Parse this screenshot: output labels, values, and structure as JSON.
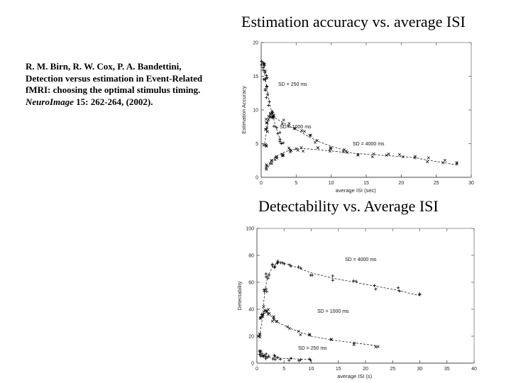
{
  "citation": {
    "authors": "R. M. Birn, R. W. Cox, P. A. Bandettini,",
    "title": "Detection versus estimation in Event-Related fMRI: choosing the optimal stimulus timing.",
    "journal": "NeuroImage",
    "details": "15: 262-264,",
    "year": "(2002)."
  },
  "chart_data": [
    {
      "type": "scatter",
      "title": "Estimation accuracy vs. average ISI",
      "xlabel": "average ISI (sec)",
      "ylabel": "Estimation Accuracy",
      "xlim": [
        0,
        30
      ],
      "ylim": [
        0,
        20
      ],
      "xticks": [
        0,
        5,
        10,
        15,
        20,
        25,
        30
      ],
      "yticks": [
        0,
        5,
        10,
        15,
        20
      ],
      "series": [
        {
          "name": "SD = 250 ms",
          "color": "#000000",
          "x": [
            0.3,
            0.4,
            0.5,
            0.6,
            0.8,
            1.0,
            1.2,
            1.5,
            1.8,
            2.1,
            2.4,
            2.7,
            3.0
          ],
          "y": [
            17,
            16.5,
            15.5,
            14.5,
            13.3,
            12.2,
            11,
            9.7,
            8.6,
            7.5,
            6.5,
            5.6,
            4.8
          ]
        },
        {
          "name": "SD = 1000 ms",
          "color": "#000000",
          "x": [
            0.5,
            0.8,
            1.0,
            1.3,
            1.6,
            2.0,
            3.0,
            4.0,
            5.0,
            6.0,
            7.0,
            8.0,
            10.0,
            12.0
          ],
          "y": [
            5,
            7,
            8.5,
            9.3,
            9.2,
            8.8,
            8.2,
            7.6,
            7.1,
            6.5,
            5.9,
            5.4,
            4.6,
            4.0
          ]
        },
        {
          "name": "SD = 4000 ms",
          "color": "#000000",
          "x": [
            1.0,
            1.5,
            2.0,
            3.0,
            4.0,
            5.0,
            6.0,
            8.0,
            10.0,
            12.0,
            14.0,
            16.0,
            18.0,
            20.0,
            22.0,
            24.0,
            26.0,
            28.0
          ],
          "y": [
            1.5,
            2.4,
            3.0,
            3.6,
            4.0,
            4.2,
            4.3,
            4.1,
            3.9,
            3.7,
            3.5,
            3.4,
            3.2,
            3.1,
            2.9,
            2.5,
            2.2,
            1.8
          ]
        }
      ]
    },
    {
      "type": "scatter",
      "title": "Detectability vs. Average ISI",
      "xlabel": "average ISI (s)",
      "ylabel": "Detectability",
      "xlim": [
        0,
        40
      ],
      "ylim": [
        0,
        100
      ],
      "xticks": [
        0,
        5,
        10,
        15,
        20,
        25,
        30,
        35,
        40
      ],
      "yticks": [
        0,
        20,
        40,
        60,
        80,
        100
      ],
      "series": [
        {
          "name": "SD = 4000 ms",
          "color": "#000000",
          "x": [
            1.0,
            1.5,
            2.0,
            3.0,
            4.0,
            5.0,
            6.0,
            8.0,
            10.0,
            14.0,
            18.0,
            22.0,
            26.0,
            30.0
          ],
          "y": [
            35,
            55,
            65,
            72,
            75,
            74,
            73,
            70,
            67,
            63,
            60,
            57,
            54,
            50
          ]
        },
        {
          "name": "SD = 1000 ms",
          "color": "#000000",
          "x": [
            0.5,
            1.0,
            1.5,
            2.0,
            3.0,
            4.0,
            6.0,
            8.0,
            10.0,
            14.0,
            18.0,
            22.0
          ],
          "y": [
            20,
            33,
            40,
            38,
            33,
            30,
            26,
            23,
            20,
            17,
            15,
            13
          ]
        },
        {
          "name": "SD = 250 ms",
          "color": "#000000",
          "x": [
            0.5,
            1.0,
            1.5,
            2.0,
            3.0,
            4.0,
            6.0,
            8.0,
            10.0
          ],
          "y": [
            8,
            6,
            5,
            4.5,
            4,
            3.7,
            3.3,
            3.0,
            2.8
          ]
        }
      ]
    }
  ]
}
